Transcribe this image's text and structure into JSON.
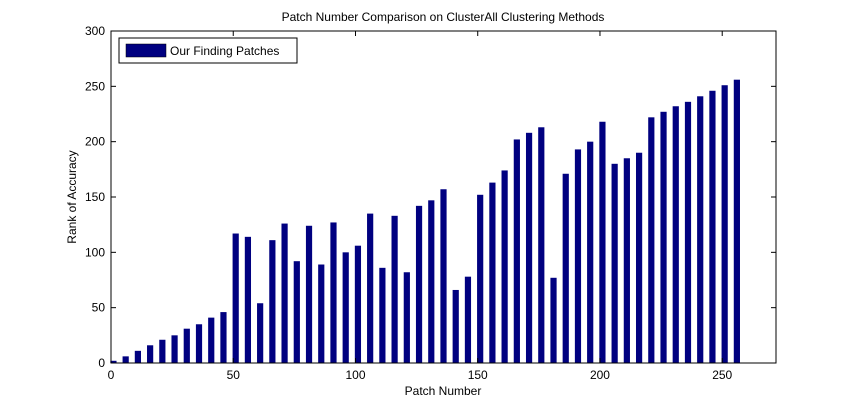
{
  "chart_data": {
    "type": "bar",
    "title": "Patch Number Comparison on ClusterAll Clustering Methods",
    "xlabel": "Patch Number",
    "ylabel": "Rank of Accuracy",
    "xlim": [
      0,
      272
    ],
    "ylim": [
      0,
      300
    ],
    "xticks": [
      0,
      50,
      100,
      150,
      200,
      250
    ],
    "yticks": [
      0,
      50,
      100,
      150,
      200,
      250,
      300
    ],
    "grid": false,
    "legend_position": "top-left",
    "series": [
      {
        "name": "Our Finding Patches",
        "color": "#000080",
        "x": [
          1,
          6,
          11,
          16,
          21,
          26,
          31,
          36,
          41,
          46,
          51,
          56,
          61,
          66,
          71,
          76,
          81,
          86,
          91,
          96,
          101,
          106,
          111,
          116,
          121,
          126,
          131,
          136,
          141,
          146,
          151,
          156,
          161,
          166,
          171,
          176,
          181,
          186,
          191,
          196,
          201,
          206,
          211,
          216,
          221,
          226,
          231,
          236,
          241,
          246,
          251,
          256
        ],
        "values": [
          2,
          6,
          11,
          16,
          21,
          25,
          31,
          35,
          41,
          46,
          117,
          114,
          54,
          111,
          126,
          92,
          124,
          89,
          127,
          100,
          106,
          135,
          86,
          133,
          82,
          142,
          147,
          157,
          66,
          78,
          152,
          163,
          174,
          202,
          208,
          213,
          77,
          171,
          193,
          200,
          218,
          180,
          185,
          190,
          222,
          227,
          232,
          236,
          241,
          246,
          251,
          256
        ]
      }
    ]
  }
}
